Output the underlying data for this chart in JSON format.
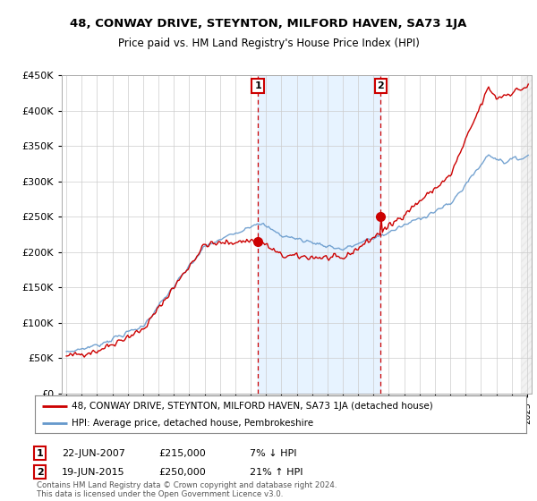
{
  "title": "48, CONWAY DRIVE, STEYNTON, MILFORD HAVEN, SA73 1JA",
  "subtitle": "Price paid vs. HM Land Registry's House Price Index (HPI)",
  "sale1_date": 2007.47,
  "sale1_price": 215000,
  "sale2_date": 2015.47,
  "sale2_price": 250000,
  "legend_line1": "48, CONWAY DRIVE, STEYNTON, MILFORD HAVEN, SA73 1JA (detached house)",
  "legend_line2": "HPI: Average price, detached house, Pembrokeshire",
  "footer": "Contains HM Land Registry data © Crown copyright and database right 2024.\nThis data is licensed under the Open Government Licence v3.0.",
  "hpi_color": "#6699cc",
  "price_color": "#cc0000",
  "ylim_min": 0,
  "ylim_max": 450000,
  "xlim_min": 1994.7,
  "xlim_max": 2025.3,
  "background_color": "#ffffff",
  "grid_color": "#cccccc",
  "shade_color": "#ddeeff"
}
